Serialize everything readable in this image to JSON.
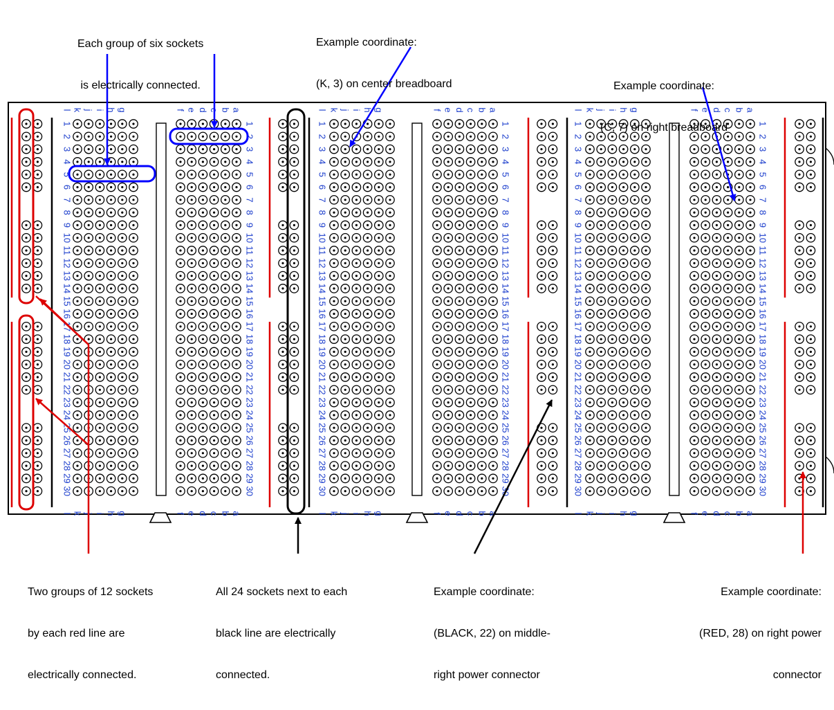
{
  "annotations": {
    "six_group": [
      "Each group of six sockets",
      "is electrically connected."
    ],
    "center_coord": [
      "Example coordinate:",
      "(K, 3) on center breadboard"
    ],
    "right_coord": [
      "Example coordinate:",
      "(C, 7) on right breadboard"
    ],
    "red_groups": [
      "Two groups of 12 sockets",
      "by each red line are",
      "electrically connected."
    ],
    "black_line": [
      "All 24 sockets next to each",
      "black line are electrically",
      "connected."
    ],
    "black22": [
      "Example coordinate:",
      "(BLACK, 22) on middle-",
      "right power connector"
    ],
    "red28": [
      "Example coordinate:",
      "(RED, 28) on right power",
      "connector"
    ]
  },
  "board": {
    "left_letters": [
      "l",
      "k",
      "j",
      "i",
      "h",
      "g"
    ],
    "right_letters": [
      "f",
      "e",
      "d",
      "c",
      "b",
      "a"
    ],
    "rows": [
      "1",
      "2",
      "3",
      "4",
      "5",
      "6",
      "7",
      "8",
      "9",
      "10",
      "11",
      "12",
      "13",
      "14",
      "15",
      "16",
      "17",
      "18",
      "19",
      "20",
      "21",
      "22",
      "23",
      "24",
      "25",
      "26",
      "27",
      "28",
      "29",
      "30"
    ]
  },
  "colors": {
    "label_blue": "#1a3ccc",
    "highlight_blue": "#0000ff",
    "power_red": "#dd0000",
    "ink": "#000000"
  }
}
